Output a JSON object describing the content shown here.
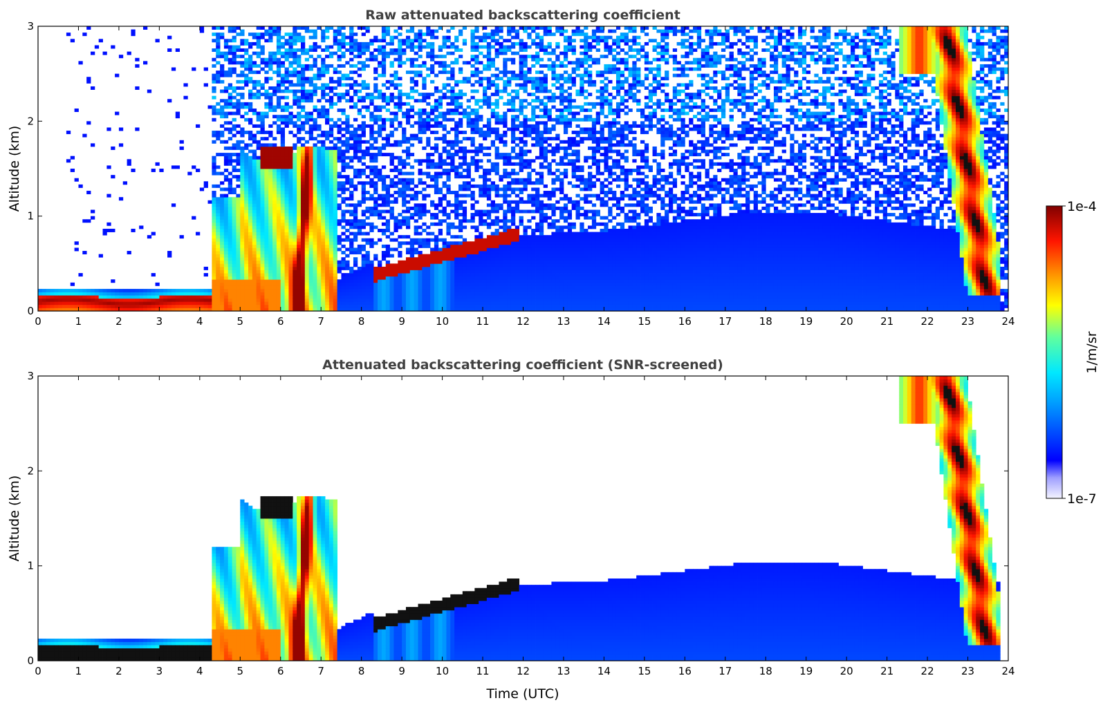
{
  "chart_data": [
    {
      "type": "heatmap",
      "title": "Raw attenuated backscattering coefficient",
      "xlabel": "",
      "ylabel": "Altitude (km)",
      "xlim": [
        0,
        24
      ],
      "ylim": [
        0,
        3
      ],
      "xticks": [
        "0",
        "1",
        "2",
        "3",
        "4",
        "5",
        "6",
        "7",
        "8",
        "9",
        "10",
        "11",
        "12",
        "13",
        "14",
        "15",
        "16",
        "17",
        "18",
        "19",
        "20",
        "21",
        "22",
        "23",
        "24"
      ],
      "yticks": [
        "0",
        "1",
        "2",
        "3"
      ],
      "screening": "none (noise visible everywhere above boundary layer)",
      "features": [
        {
          "name": "surface aerosol layer",
          "x": [
            0,
            4.3
          ],
          "y": [
            0,
            0.2
          ],
          "level": "very high"
        },
        {
          "name": "boundary layer / precipitation",
          "x": [
            4.3,
            7.4
          ],
          "y": [
            0,
            1.7
          ],
          "level": "high"
        },
        {
          "name": "melting layer band",
          "x": [
            6.1,
            7.0
          ],
          "y": [
            0,
            1.7
          ],
          "level": "very high"
        },
        {
          "name": "cloud top",
          "x": [
            5.5,
            6.3
          ],
          "y": [
            1.55,
            1.7
          ],
          "level": "very high"
        },
        {
          "name": "rising cloud base",
          "x": [
            8.3,
            11.8
          ],
          "y": [
            0.35,
            0.85
          ],
          "level": "very high"
        },
        {
          "name": "mixed layer",
          "x": [
            7.4,
            23.8
          ],
          "y": [
            0,
            0.8
          ],
          "level": "low"
        },
        {
          "name": "precipitation streaks",
          "x": [
            21.4,
            23.8
          ],
          "y": [
            0.2,
            3.0
          ],
          "level": "high"
        }
      ]
    },
    {
      "type": "heatmap",
      "title": "Attenuated backscattering coefficient (SNR-screened)",
      "xlabel": "Time (UTC)",
      "ylabel": "Altitude (km)",
      "xlim": [
        0,
        24
      ],
      "ylim": [
        0,
        3
      ],
      "xticks": [
        "0",
        "1",
        "2",
        "3",
        "4",
        "5",
        "6",
        "7",
        "8",
        "9",
        "10",
        "11",
        "12",
        "13",
        "14",
        "15",
        "16",
        "17",
        "18",
        "19",
        "20",
        "21",
        "22",
        "23",
        "24"
      ],
      "yticks": [
        "0",
        "1",
        "2",
        "3"
      ],
      "screening": "low SNR removed (white)",
      "features": [
        {
          "name": "surface aerosol layer",
          "x": [
            0,
            4.3
          ],
          "y": [
            0,
            0.2
          ],
          "level": "saturated"
        },
        {
          "name": "boundary layer / precipitation",
          "x": [
            4.3,
            7.4
          ],
          "y": [
            0,
            1.9
          ],
          "level": "high"
        },
        {
          "name": "rising cloud base",
          "x": [
            8.3,
            11.8
          ],
          "y": [
            0.35,
            0.95
          ],
          "level": "saturated"
        },
        {
          "name": "mixed layer",
          "x": [
            7.4,
            23.5
          ],
          "y": [
            0,
            1.1
          ],
          "level": "low"
        },
        {
          "name": "precipitation streaks",
          "x": [
            21.0,
            23.8
          ],
          "y": [
            0.2,
            3.0
          ],
          "level": "high"
        }
      ]
    }
  ],
  "colorbar": {
    "label": "1/m/sr",
    "max_label": "1e-4",
    "min_label": "1e-7",
    "colormap": "jet",
    "scale": "log",
    "range": [
      1e-07,
      0.0001
    ]
  }
}
